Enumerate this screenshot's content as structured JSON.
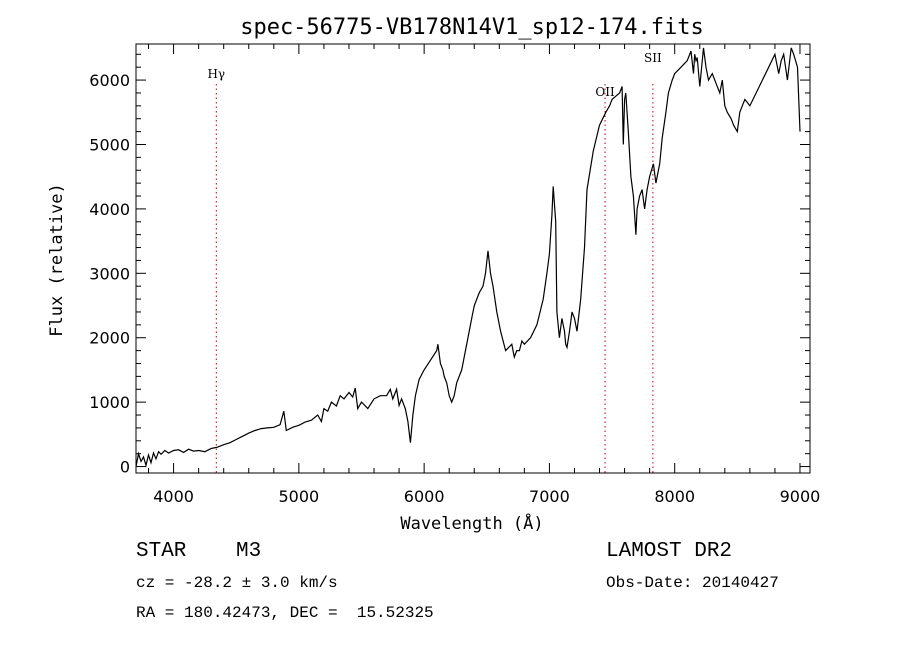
{
  "chart_data": {
    "type": "line",
    "title": "spec-56775-VB178N14V1_sp12-174.fits",
    "xlabel": "Wavelength (Å)",
    "ylabel": "Flux (relative)",
    "xlim": [
      3700,
      9080
    ],
    "ylim": [
      -100,
      6560
    ],
    "xticks": [
      4000,
      5000,
      6000,
      7000,
      8000,
      9000
    ],
    "yticks": [
      0,
      1000,
      2000,
      3000,
      4000,
      5000,
      6000
    ],
    "grid": false,
    "line_color": "#000000",
    "marker_color": "#cc0000",
    "series": [
      {
        "x": [
          3700,
          3720,
          3740,
          3760,
          3780,
          3800,
          3820,
          3840,
          3860,
          3880,
          3900,
          3930,
          3960,
          4000,
          4040,
          4080,
          4120,
          4160,
          4200,
          4250,
          4300,
          4350,
          4400,
          4450,
          4500,
          4550,
          4600,
          4650,
          4700,
          4750,
          4800,
          4850,
          4880,
          4900,
          4950,
          5000,
          5050,
          5100,
          5150,
          5180,
          5200,
          5230,
          5260,
          5300,
          5330,
          5360,
          5400,
          5430,
          5450,
          5470,
          5500,
          5550,
          5600,
          5650,
          5700,
          5730,
          5750,
          5780,
          5800,
          5820,
          5850,
          5870,
          5890,
          5910,
          5930,
          5960,
          6000,
          6050,
          6100,
          6110,
          6130,
          6150,
          6160,
          6180,
          6200,
          6220,
          6240,
          6260,
          6300,
          6340,
          6380,
          6400,
          6440,
          6470,
          6490,
          6510,
          6530,
          6550,
          6580,
          6610,
          6650,
          6700,
          6720,
          6740,
          6760,
          6780,
          6800,
          6850,
          6900,
          6950,
          6980,
          7000,
          7020,
          7030,
          7050,
          7060,
          7080,
          7100,
          7120,
          7130,
          7140,
          7160,
          7180,
          7200,
          7220,
          7250,
          7280,
          7300,
          7350,
          7400,
          7450,
          7480,
          7500,
          7530,
          7560,
          7580,
          7590,
          7600,
          7610,
          7630,
          7650,
          7670,
          7690,
          7700,
          7720,
          7740,
          7760,
          7780,
          7800,
          7830,
          7850,
          7880,
          7900,
          7930,
          7950,
          7980,
          8000,
          8050,
          8100,
          8130,
          8150,
          8160,
          8170,
          8180,
          8200,
          8230,
          8250,
          8270,
          8300,
          8330,
          8360,
          8380,
          8400,
          8420,
          8450,
          8470,
          8500,
          8520,
          8540,
          8560,
          8600,
          8650,
          8700,
          8750,
          8800,
          8830,
          8850,
          8870,
          8900,
          8930,
          8950,
          8980,
          9000
        ],
        "y": [
          0,
          200,
          80,
          150,
          20,
          180,
          60,
          210,
          120,
          230,
          190,
          250,
          210,
          250,
          260,
          220,
          270,
          240,
          250,
          230,
          280,
          300,
          340,
          370,
          420,
          470,
          520,
          560,
          590,
          600,
          610,
          650,
          860,
          560,
          610,
          640,
          690,
          720,
          800,
          700,
          900,
          860,
          1000,
          940,
          1100,
          1050,
          1150,
          1080,
          1220,
          900,
          1000,
          900,
          1050,
          1100,
          1100,
          1200,
          1050,
          1200,
          950,
          1050,
          900,
          700,
          370,
          800,
          1100,
          1350,
          1500,
          1650,
          1800,
          1900,
          1600,
          1500,
          1400,
          1300,
          1100,
          1000,
          1100,
          1300,
          1500,
          1900,
          2300,
          2500,
          2700,
          2800,
          3000,
          3350,
          3000,
          2800,
          2400,
          2100,
          1800,
          1900,
          1700,
          1800,
          1800,
          1950,
          1900,
          2000,
          2200,
          2600,
          3000,
          3300,
          3900,
          4350,
          3800,
          2400,
          2000,
          2300,
          2100,
          1900,
          1850,
          2100,
          2400,
          2300,
          2100,
          2600,
          3400,
          4300,
          4900,
          5300,
          5500,
          5600,
          5700,
          5750,
          5800,
          5900,
          5000,
          5700,
          5800,
          5200,
          4500,
          4200,
          3600,
          4000,
          4200,
          4300,
          4000,
          4300,
          4500,
          4700,
          4400,
          4700,
          5100,
          5500,
          5800,
          6000,
          6100,
          6200,
          6300,
          6450,
          6100,
          6400,
          6300,
          6350,
          5900,
          6500,
          6200,
          6000,
          6100,
          5950,
          5800,
          6000,
          5600,
          5500,
          5400,
          5300,
          5200,
          5500,
          5600,
          5700,
          5600,
          5800,
          6000,
          6200,
          6400,
          6100,
          6300,
          6400,
          6000,
          6500,
          6400,
          6200,
          5200
        ]
      }
    ],
    "lines": [
      {
        "x": 4341,
        "label": "Hγ"
      },
      {
        "x": 7444,
        "label": "OII"
      },
      {
        "x": 7826,
        "label": "SII"
      }
    ]
  },
  "info": {
    "object_class": "STAR",
    "subclass": "M3",
    "survey": "LAMOST DR2",
    "cz": "cz = -28.2 ± 3.0 km/s",
    "obs_date": "Obs-Date: 20140427",
    "coords": "RA = 180.42473, DEC =  15.52325"
  }
}
